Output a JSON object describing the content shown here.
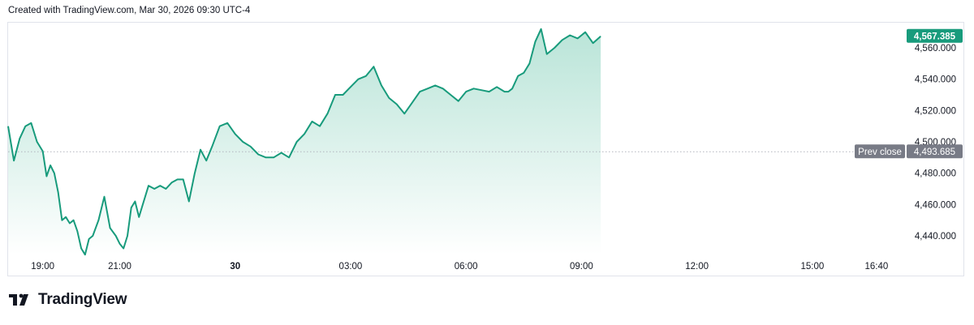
{
  "header": {
    "created_text": "Created with TradingView.com, Mar 30, 2026 09:30 UTC-4"
  },
  "brand": {
    "name": "TradingView",
    "logo_icon": "tradingview-logo-icon"
  },
  "colors": {
    "line": "#189b7c",
    "area_top": "#b6e3d6",
    "area_bottom": "#ffffff",
    "last_price_bg": "#189b7c",
    "prev_close_bg": "#787b86",
    "axis_text": "#131722"
  },
  "chart_data": {
    "type": "area",
    "ylim": [
      4425,
      4575
    ],
    "y_ticks": [
      "4,440.000",
      "4,460.000",
      "4,480.000",
      "4,500.000",
      "4,520.000",
      "4,540.000",
      "4,560.000"
    ],
    "y_tick_values": [
      4440,
      4460,
      4480,
      4500,
      4520,
      4540,
      4560
    ],
    "x_tick_labels": [
      "19:00",
      "21:00",
      "30",
      "03:00",
      "06:00",
      "09:00",
      "12:00",
      "15:00",
      "16:40"
    ],
    "x_tick_hours": [
      19,
      21,
      24,
      27,
      30,
      33,
      36,
      39,
      40.667
    ],
    "x_range_hours": [
      18.1,
      41.45
    ],
    "grid": false,
    "last_price": {
      "label": "4,567.385",
      "value": 4567.385
    },
    "prev_close": {
      "label": "Prev close",
      "value_label": "4,493.685",
      "value": 4493.685
    },
    "series": [
      {
        "x": [
          18.1,
          18.25,
          18.4,
          18.55,
          18.7,
          18.85,
          19.0,
          19.1,
          19.2,
          19.3,
          19.4,
          19.5,
          19.6,
          19.7,
          19.8,
          19.9,
          20.0,
          20.1,
          20.2,
          20.3,
          20.45,
          20.6,
          20.75,
          20.9,
          21.0,
          21.1,
          21.2,
          21.3,
          21.4,
          21.5,
          21.6,
          21.75,
          21.9,
          22.05,
          22.2,
          22.35,
          22.5,
          22.65,
          22.8,
          22.95,
          23.1,
          23.25,
          23.4,
          23.6,
          23.8,
          24.0,
          24.2,
          24.4,
          24.6,
          24.8,
          25.0,
          25.2,
          25.4,
          25.6,
          25.8,
          26.0,
          26.2,
          26.4,
          26.6,
          26.8,
          27.0,
          27.2,
          27.4,
          27.6,
          27.8,
          28.0,
          28.2,
          28.4,
          28.6,
          28.8,
          29.0,
          29.2,
          29.4,
          29.6,
          29.8,
          30.0,
          30.2,
          30.4,
          30.6,
          30.8,
          31.0,
          31.1,
          31.2,
          31.35,
          31.5,
          31.65,
          31.8,
          31.95,
          32.1,
          32.3,
          32.5,
          32.7,
          32.9,
          33.1,
          33.3,
          33.5
        ],
        "values": [
          4510,
          4488,
          4502,
          4510,
          4512,
          4500,
          4494,
          4478,
          4485,
          4480,
          4468,
          4450,
          4452,
          4448,
          4450,
          4443,
          4432,
          4428,
          4438,
          4440,
          4450,
          4465,
          4445,
          4440,
          4435,
          4432,
          4440,
          4458,
          4462,
          4452,
          4460,
          4472,
          4470,
          4472,
          4470,
          4474,
          4476,
          4476,
          4462,
          4480,
          4495,
          4488,
          4497,
          4510,
          4512,
          4505,
          4500,
          4497,
          4492,
          4490,
          4490,
          4493,
          4490,
          4500,
          4505,
          4513,
          4510,
          4518,
          4530,
          4530,
          4535,
          4540,
          4542,
          4548,
          4536,
          4528,
          4524,
          4518,
          4525,
          4532,
          4534,
          4536,
          4534,
          4530,
          4526,
          4532,
          4534,
          4533,
          4532,
          4535,
          4532,
          4532,
          4534,
          4542,
          4544,
          4550,
          4564,
          4572,
          4556,
          4560,
          4565,
          4568,
          4566,
          4570,
          4563,
          4567.385
        ]
      }
    ]
  }
}
